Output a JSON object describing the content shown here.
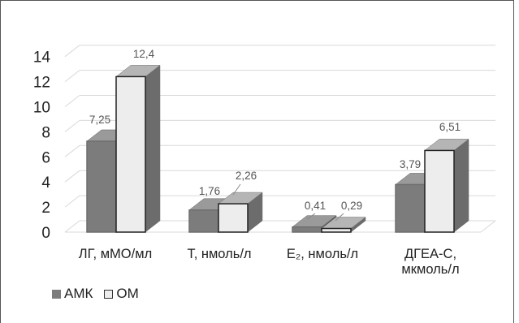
{
  "chart_data": {
    "type": "bar",
    "style": "3d-clustered-column",
    "categories": [
      [
        "ЛГ, мМО/мл"
      ],
      [
        "Т, нмоль/л"
      ],
      [
        "E₂, нмоль/л"
      ],
      [
        "ДГЕА-С,",
        "мкмоль/л"
      ]
    ],
    "series": [
      {
        "name": "АМК",
        "values": [
          7.25,
          1.76,
          0.41,
          3.79
        ],
        "labels": [
          "7,25",
          "1,76",
          "0,41",
          "3,79"
        ],
        "color": "#7c7c7c"
      },
      {
        "name": "ОМ",
        "values": [
          12.4,
          2.26,
          0.29,
          6.51
        ],
        "labels": [
          "12,4",
          "2,26",
          "0,29",
          "6,51"
        ],
        "color": "#ededed"
      }
    ],
    "y_ticks": [
      "0",
      "2",
      "4",
      "6",
      "8",
      "10",
      "12",
      "14"
    ],
    "ylim": [
      0,
      14
    ],
    "grid": true,
    "legend_position": "bottom-left",
    "title": "",
    "xlabel": "",
    "ylabel": ""
  }
}
